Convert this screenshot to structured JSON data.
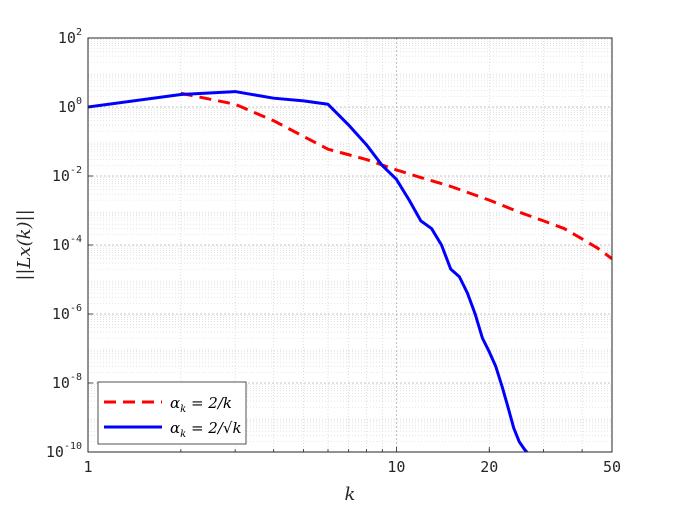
{
  "chart_data": {
    "type": "line",
    "xscale": "log",
    "yscale": "log",
    "xlim": [
      1,
      50
    ],
    "ylim": [
      1e-10,
      100
    ],
    "xticks": [
      {
        "value": 1,
        "label": "1"
      },
      {
        "value": 10,
        "label": "10"
      },
      {
        "value": 20,
        "label": "20"
      },
      {
        "value": 50,
        "label": "50"
      }
    ],
    "yticks": [
      {
        "value": 1e-10,
        "base": "10",
        "exp": "-10"
      },
      {
        "value": 1e-08,
        "base": "10",
        "exp": "-8"
      },
      {
        "value": 1e-06,
        "base": "10",
        "exp": "-6"
      },
      {
        "value": 0.0001,
        "base": "10",
        "exp": "-4"
      },
      {
        "value": 0.01,
        "base": "10",
        "exp": "-2"
      },
      {
        "value": 1,
        "base": "10",
        "exp": "0"
      },
      {
        "value": 100,
        "base": "10",
        "exp": "2"
      }
    ],
    "xlabel": "k",
    "ylabel": "||Lx(k)||",
    "grid": true,
    "minor_grid": true,
    "legend_position": "bottom-left",
    "series": [
      {
        "name": "α_k = 2/k",
        "legend_main": "α",
        "legend_sub": "k",
        "legend_rest": " = 2/k",
        "color": "#ff0000",
        "style": "dashed",
        "x": [
          2,
          3,
          4,
          5,
          6,
          8,
          10,
          12,
          15,
          20,
          25,
          30,
          35,
          40,
          45,
          50
        ],
        "y": [
          2.5,
          1.2,
          0.4,
          0.14,
          0.06,
          0.03,
          0.015,
          0.009,
          0.005,
          0.002,
          0.0009,
          0.0005,
          0.0003,
          0.00015,
          8e-05,
          4e-05
        ]
      },
      {
        "name": "α_k = 2/√k",
        "legend_main": "α",
        "legend_sub": "k",
        "legend_rest": " = 2/√k",
        "color": "#0000ff",
        "style": "solid",
        "x": [
          1,
          2,
          3,
          4,
          5,
          6,
          7,
          8,
          9,
          10,
          11,
          12,
          13,
          14,
          15,
          16,
          17,
          18,
          19,
          20,
          21,
          22,
          23,
          24,
          25,
          26,
          27,
          28,
          29,
          30
        ],
        "y": [
          1.0,
          2.3,
          2.8,
          1.8,
          1.5,
          1.2,
          0.3,
          0.08,
          0.02,
          0.008,
          0.002,
          0.0005,
          0.0003,
          0.0001,
          2e-05,
          1.2e-05,
          4e-06,
          1e-06,
          2e-07,
          8e-08,
          3e-08,
          8e-09,
          2e-09,
          5e-10,
          2e-10,
          1.2e-10,
          8e-11,
          6e-11,
          5e-11,
          4e-11
        ]
      }
    ]
  }
}
